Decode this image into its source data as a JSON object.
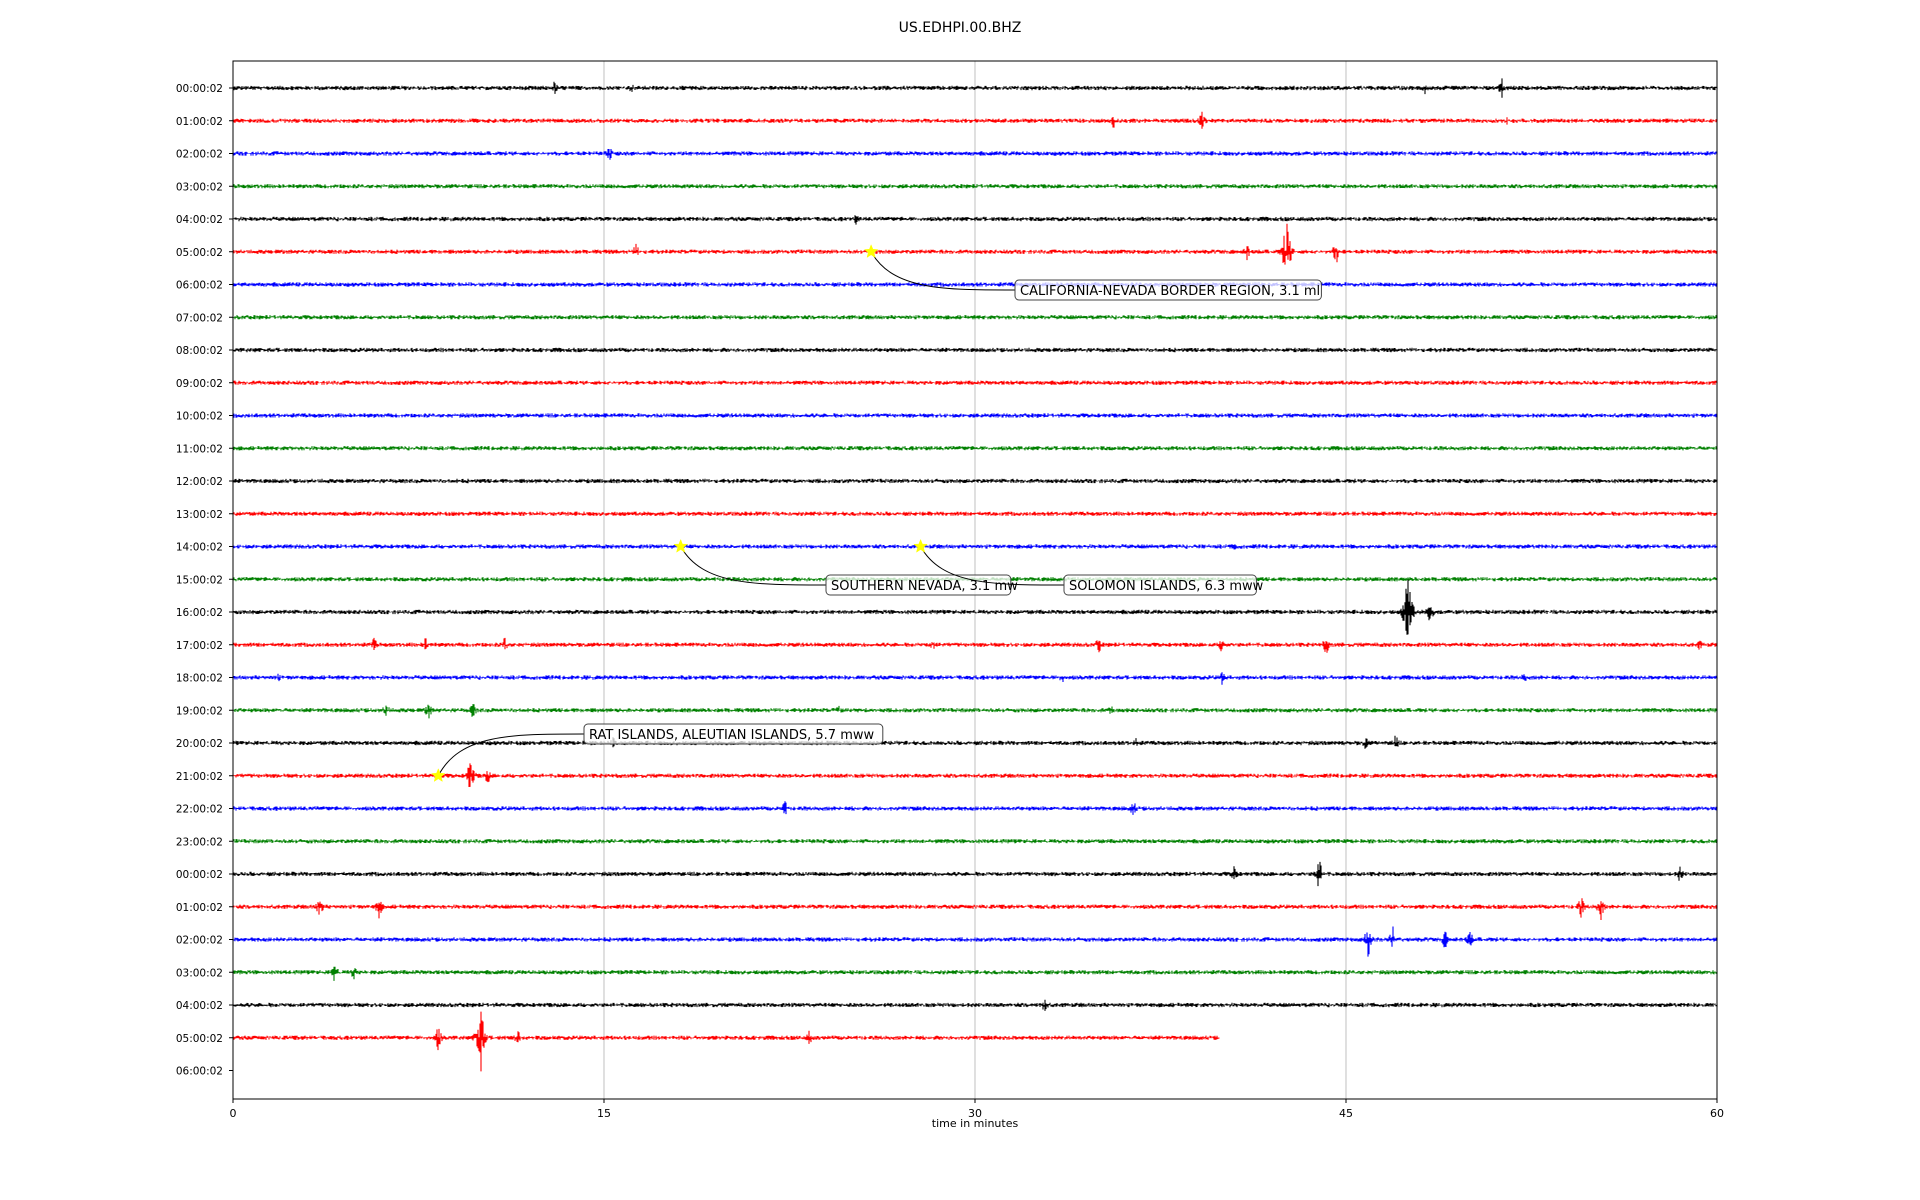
{
  "chart_data": {
    "type": "line",
    "title": "US.EDHPI.00.BHZ",
    "xlabel": "time in minutes",
    "ylabel": "",
    "xlim": [
      0,
      60
    ],
    "x_ticks": [
      0,
      15,
      30,
      45,
      60
    ],
    "grid": "vertical lines at x ticks",
    "row_labels": [
      "00:00:02",
      "01:00:02",
      "02:00:02",
      "03:00:02",
      "04:00:02",
      "05:00:02",
      "06:00:02",
      "07:00:02",
      "08:00:02",
      "09:00:02",
      "10:00:02",
      "11:00:02",
      "12:00:02",
      "13:00:02",
      "14:00:02",
      "15:00:02",
      "16:00:02",
      "17:00:02",
      "18:00:02",
      "19:00:02",
      "20:00:02",
      "21:00:02",
      "22:00:02",
      "23:00:02",
      "00:00:02",
      "01:00:02",
      "02:00:02",
      "03:00:02",
      "04:00:02",
      "05:00:02",
      "06:00:02"
    ],
    "trace_colors": [
      "#000000",
      "#ff0000",
      "#0000ff",
      "#008000"
    ],
    "trace_count": 30,
    "last_trace_end_minute": 39.9,
    "event_bursts": [
      {
        "row": 0,
        "minute": 13.0,
        "amp": 0.25
      },
      {
        "row": 0,
        "minute": 16.1,
        "amp": 0.2
      },
      {
        "row": 0,
        "minute": 48.2,
        "amp": 0.2
      },
      {
        "row": 0,
        "minute": 51.3,
        "amp": 0.35
      },
      {
        "row": 1,
        "minute": 35.6,
        "amp": 0.25
      },
      {
        "row": 1,
        "minute": 39.2,
        "amp": 0.4
      },
      {
        "row": 1,
        "minute": 51.5,
        "amp": 0.15
      },
      {
        "row": 2,
        "minute": 15.2,
        "amp": 0.3
      },
      {
        "row": 4,
        "minute": 25.2,
        "amp": 0.2
      },
      {
        "row": 5,
        "minute": 16.3,
        "amp": 0.3
      },
      {
        "row": 5,
        "minute": 41.0,
        "amp": 0.3
      },
      {
        "row": 5,
        "minute": 42.6,
        "amp": 1.3
      },
      {
        "row": 5,
        "minute": 44.6,
        "amp": 0.45
      },
      {
        "row": 14,
        "minute": 40.5,
        "amp": 0.2
      },
      {
        "row": 16,
        "minute": 47.5,
        "amp": 1.6
      },
      {
        "row": 16,
        "minute": 48.4,
        "amp": 0.4
      },
      {
        "row": 17,
        "minute": 5.7,
        "amp": 0.25
      },
      {
        "row": 17,
        "minute": 7.8,
        "amp": 0.3
      },
      {
        "row": 17,
        "minute": 11.0,
        "amp": 0.3
      },
      {
        "row": 17,
        "minute": 28.3,
        "amp": 0.25
      },
      {
        "row": 17,
        "minute": 35.0,
        "amp": 0.3
      },
      {
        "row": 17,
        "minute": 40.0,
        "amp": 0.35
      },
      {
        "row": 17,
        "minute": 44.2,
        "amp": 0.35
      },
      {
        "row": 17,
        "minute": 59.3,
        "amp": 0.2
      },
      {
        "row": 18,
        "minute": 1.8,
        "amp": 0.2
      },
      {
        "row": 18,
        "minute": 33.5,
        "amp": 0.25
      },
      {
        "row": 18,
        "minute": 40.0,
        "amp": 0.25
      },
      {
        "row": 18,
        "minute": 52.2,
        "amp": 0.2
      },
      {
        "row": 19,
        "minute": 6.2,
        "amp": 0.3
      },
      {
        "row": 19,
        "minute": 7.9,
        "amp": 0.35
      },
      {
        "row": 19,
        "minute": 9.7,
        "amp": 0.3
      },
      {
        "row": 19,
        "minute": 24.5,
        "amp": 0.2
      },
      {
        "row": 19,
        "minute": 35.5,
        "amp": 0.2
      },
      {
        "row": 20,
        "minute": 15.4,
        "amp": 0.25
      },
      {
        "row": 20,
        "minute": 36.5,
        "amp": 0.2
      },
      {
        "row": 20,
        "minute": 45.8,
        "amp": 0.25
      },
      {
        "row": 20,
        "minute": 47.0,
        "amp": 0.3
      },
      {
        "row": 21,
        "minute": 9.6,
        "amp": 0.7
      },
      {
        "row": 21,
        "minute": 10.3,
        "amp": 0.3
      },
      {
        "row": 22,
        "minute": 22.3,
        "amp": 0.35
      },
      {
        "row": 22,
        "minute": 36.4,
        "amp": 0.3
      },
      {
        "row": 24,
        "minute": 40.5,
        "amp": 0.35
      },
      {
        "row": 24,
        "minute": 43.9,
        "amp": 0.6
      },
      {
        "row": 24,
        "minute": 58.5,
        "amp": 0.3
      },
      {
        "row": 25,
        "minute": 3.5,
        "amp": 0.4
      },
      {
        "row": 25,
        "minute": 5.9,
        "amp": 0.4
      },
      {
        "row": 25,
        "minute": 54.5,
        "amp": 0.4
      },
      {
        "row": 25,
        "minute": 55.3,
        "amp": 0.45
      },
      {
        "row": 26,
        "minute": 45.9,
        "amp": 0.6
      },
      {
        "row": 26,
        "minute": 46.9,
        "amp": 0.45
      },
      {
        "row": 26,
        "minute": 49.0,
        "amp": 0.35
      },
      {
        "row": 26,
        "minute": 50.0,
        "amp": 0.35
      },
      {
        "row": 27,
        "minute": 4.1,
        "amp": 0.4
      },
      {
        "row": 27,
        "minute": 4.9,
        "amp": 0.3
      },
      {
        "row": 28,
        "minute": 32.8,
        "amp": 0.35
      },
      {
        "row": 29,
        "minute": 8.3,
        "amp": 0.45
      },
      {
        "row": 29,
        "minute": 10.0,
        "amp": 1.4
      },
      {
        "row": 29,
        "minute": 11.5,
        "amp": 0.3
      },
      {
        "row": 29,
        "minute": 23.3,
        "amp": 0.25
      }
    ],
    "annotations": [
      {
        "text": "CALIFORNIA-NEVADA BORDER REGION, 3.1 ml",
        "row": 5,
        "minute": 25.8
      },
      {
        "text": "SOUTHERN NEVADA, 3.1 mw",
        "row": 14,
        "minute": 18.1
      },
      {
        "text": "SOLOMON ISLANDS, 6.3 mww",
        "row": 14,
        "minute": 27.8
      },
      {
        "text": "RAT ISLANDS, ALEUTIAN ISLANDS, 5.7 mww",
        "row": 21,
        "minute": 8.3
      }
    ],
    "star_color": "#ffff00"
  }
}
